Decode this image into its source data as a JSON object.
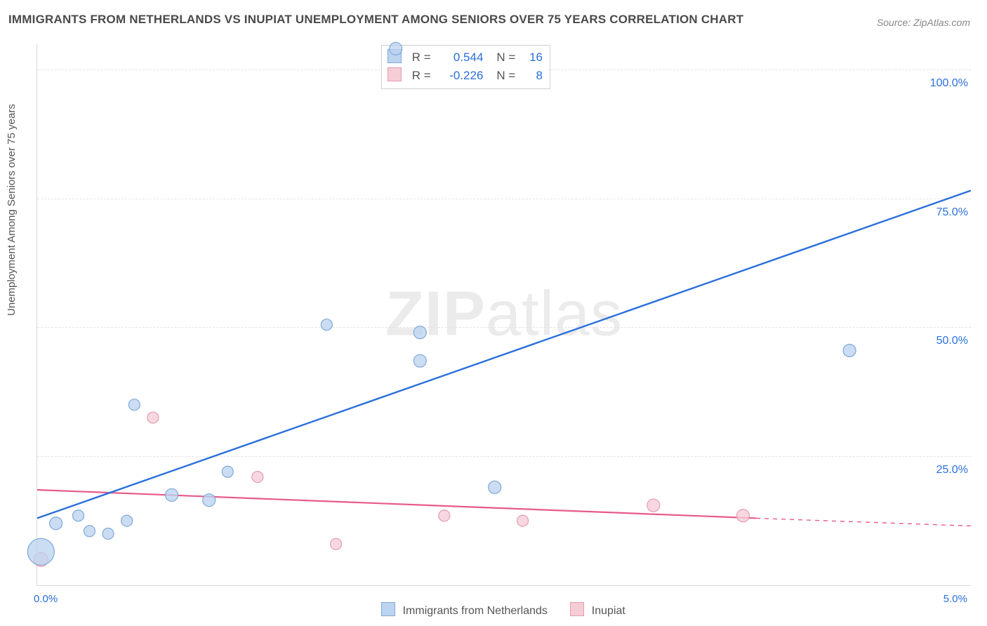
{
  "title": "IMMIGRANTS FROM NETHERLANDS VS INUPIAT UNEMPLOYMENT AMONG SENIORS OVER 75 YEARS CORRELATION CHART",
  "source": "Source: ZipAtlas.com",
  "watermark_a": "ZIP",
  "watermark_b": "atlas",
  "y_axis_title": "Unemployment Among Seniors over 75 years",
  "chart": {
    "type": "scatter",
    "background_color": "#ffffff",
    "grid_color": "#e3e3e3",
    "axis_color": "#d9d9d9",
    "xlim": [
      0.0,
      5.0
    ],
    "ylim": [
      0.0,
      105.0
    ],
    "y_ticks": [
      25.0,
      50.0,
      75.0,
      100.0
    ],
    "y_tick_labels": [
      "25.0%",
      "50.0%",
      "75.0%",
      "100.0%"
    ],
    "x_tick_labels": [
      "0.0%",
      "5.0%"
    ],
    "axis_label_color": "#2a6fdb",
    "axis_label_fontsize": 16
  },
  "series_a": {
    "name": "Immigrants from Netherlands",
    "fill": "#bcd4ef",
    "stroke": "#7fa9d8",
    "line_color": "#2a6fdb",
    "line_width": 2.4,
    "R_label": "R =",
    "R": "0.544",
    "N_label": "N =",
    "N": "16",
    "points": [
      {
        "x": 0.02,
        "y": 6.5,
        "r": 19
      },
      {
        "x": 0.1,
        "y": 12.0,
        "r": 9
      },
      {
        "x": 0.22,
        "y": 13.5,
        "r": 8
      },
      {
        "x": 0.28,
        "y": 10.5,
        "r": 8
      },
      {
        "x": 0.38,
        "y": 10.0,
        "r": 8
      },
      {
        "x": 0.48,
        "y": 12.5,
        "r": 8
      },
      {
        "x": 0.52,
        "y": 35.0,
        "r": 8
      },
      {
        "x": 0.72,
        "y": 17.5,
        "r": 9
      },
      {
        "x": 0.92,
        "y": 16.5,
        "r": 9
      },
      {
        "x": 1.02,
        "y": 22.0,
        "r": 8
      },
      {
        "x": 1.55,
        "y": 50.5,
        "r": 8
      },
      {
        "x": 1.92,
        "y": 104.0,
        "r": 9
      },
      {
        "x": 2.05,
        "y": 49.0,
        "r": 9
      },
      {
        "x": 2.05,
        "y": 43.5,
        "r": 9
      },
      {
        "x": 2.45,
        "y": 19.0,
        "r": 9
      },
      {
        "x": 4.35,
        "y": 45.5,
        "r": 9
      }
    ],
    "trend": {
      "x1": 0.0,
      "y1": 13.0,
      "x2": 5.0,
      "y2": 76.5
    }
  },
  "series_b": {
    "name": "Inupiat",
    "fill": "#f6cdd7",
    "stroke": "#e59bb0",
    "line_color": "#e75a8a",
    "line_width": 2.2,
    "R_label": "R =",
    "R": "-0.226",
    "N_label": "N =",
    "N": "8",
    "points": [
      {
        "x": 0.02,
        "y": 5.0,
        "r": 10
      },
      {
        "x": 0.62,
        "y": 32.5,
        "r": 8
      },
      {
        "x": 1.18,
        "y": 21.0,
        "r": 8
      },
      {
        "x": 1.6,
        "y": 8.0,
        "r": 8
      },
      {
        "x": 2.18,
        "y": 13.5,
        "r": 8
      },
      {
        "x": 2.6,
        "y": 12.5,
        "r": 8
      },
      {
        "x": 3.3,
        "y": 15.5,
        "r": 9
      },
      {
        "x": 3.78,
        "y": 13.5,
        "r": 9
      }
    ],
    "trend_solid": {
      "x1": 0.0,
      "y1": 18.5,
      "x2": 3.85,
      "y2": 13.0
    },
    "trend_dash": {
      "x1": 3.85,
      "y1": 13.0,
      "x2": 5.0,
      "y2": 11.5
    }
  },
  "bottom_legend": {
    "a": "Immigrants from Netherlands",
    "b": "Inupiat"
  }
}
